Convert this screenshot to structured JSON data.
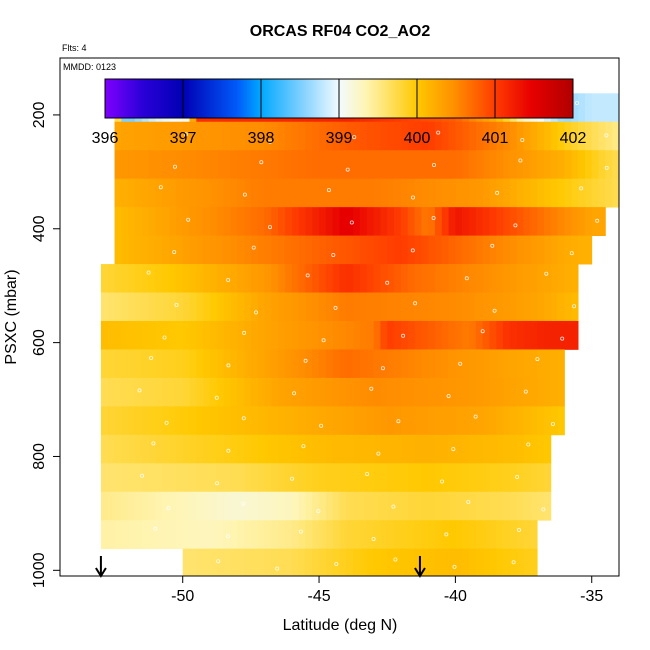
{
  "chart_data": {
    "type": "heatmap",
    "title": "ORCAS RF04 CO2_AO2",
    "flights_label": "Flts: 4",
    "date_label": "MMDD: 0123",
    "xlabel": "Latitude (deg N)",
    "ylabel": "PSXC (mbar)",
    "xlim": [
      -54.5,
      -34.0
    ],
    "ylim": [
      1010,
      100
    ],
    "x_ticks": [
      -50,
      -45,
      -40,
      -35
    ],
    "x_tick_labels": [
      "-50",
      "-45",
      "-40",
      "-35"
    ],
    "y_ticks": [
      200,
      400,
      600,
      800,
      1000
    ],
    "y_tick_labels": [
      "200",
      "400",
      "600",
      "800",
      "1000"
    ],
    "colorbar": {
      "min": 396,
      "max": 402,
      "ticks": [
        396,
        397,
        398,
        399,
        400,
        401,
        402
      ],
      "tick_labels": [
        "396",
        "397",
        "398",
        "399",
        "400",
        "401",
        "402"
      ]
    },
    "markers": [
      -53.0,
      -41.3
    ],
    "pressure_bands": [
      {
        "p": 187,
        "lat_min": -52.5,
        "lat_max": -34.0,
        "segments": [
          {
            "lat": -52.5,
            "v": 400.3
          },
          {
            "lat": -52.1,
            "v": 398.4
          },
          {
            "lat": -51.0,
            "v": 398.9
          },
          {
            "lat": -49.8,
            "v": 399.1
          },
          {
            "lat": -49.5,
            "v": 401.1
          },
          {
            "lat": -44.0,
            "v": 401.2
          },
          {
            "lat": -40.0,
            "v": 400.8
          },
          {
            "lat": -38.5,
            "v": 400.2
          },
          {
            "lat": -37.5,
            "v": 399.3
          },
          {
            "lat": -36.0,
            "v": 398.6
          },
          {
            "lat": -35.0,
            "v": 398.8
          },
          {
            "lat": -34.0,
            "v": 398.8
          }
        ]
      },
      {
        "p": 237,
        "lat_min": -52.5,
        "lat_max": -34.0,
        "segments": [
          {
            "lat": -52.5,
            "v": 400.3
          },
          {
            "lat": -47.0,
            "v": 400.5
          },
          {
            "lat": -44.0,
            "v": 400.8
          },
          {
            "lat": -41.0,
            "v": 401.0
          },
          {
            "lat": -38.0,
            "v": 400.5
          },
          {
            "lat": -35.5,
            "v": 399.8
          },
          {
            "lat": -34.0,
            "v": 399.5
          }
        ]
      },
      {
        "p": 287,
        "lat_min": -52.5,
        "lat_max": -33.5,
        "segments": [
          {
            "lat": -52.5,
            "v": 400.4
          },
          {
            "lat": -45.0,
            "v": 400.7
          },
          {
            "lat": -40.0,
            "v": 400.7
          },
          {
            "lat": -36.0,
            "v": 400.2
          },
          {
            "lat": -34.5,
            "v": 399.8
          },
          {
            "lat": -33.5,
            "v": 399.6
          }
        ]
      },
      {
        "p": 337,
        "lat_min": -52.5,
        "lat_max": -34.0,
        "segments": [
          {
            "lat": -52.5,
            "v": 400.2
          },
          {
            "lat": -47.0,
            "v": 400.6
          },
          {
            "lat": -43.0,
            "v": 400.6
          },
          {
            "lat": -39.0,
            "v": 400.4
          },
          {
            "lat": -35.5,
            "v": 399.9
          },
          {
            "lat": -34.0,
            "v": 399.7
          }
        ]
      },
      {
        "p": 387,
        "lat_min": -52.5,
        "lat_max": -34.5,
        "segments": [
          {
            "lat": -52.5,
            "v": 400.1
          },
          {
            "lat": -47.0,
            "v": 400.7
          },
          {
            "lat": -44.0,
            "v": 401.5
          },
          {
            "lat": -42.0,
            "v": 401.0
          },
          {
            "lat": -41.0,
            "v": 400.6
          },
          {
            "lat": -40.0,
            "v": 401.3
          },
          {
            "lat": -37.0,
            "v": 400.7
          },
          {
            "lat": -35.0,
            "v": 400.3
          },
          {
            "lat": -34.5,
            "v": 400.3
          }
        ]
      },
      {
        "p": 437,
        "lat_min": -52.5,
        "lat_max": -35.0,
        "segments": [
          {
            "lat": -52.5,
            "v": 400.1
          },
          {
            "lat": -48.0,
            "v": 400.5
          },
          {
            "lat": -44.5,
            "v": 400.8
          },
          {
            "lat": -42.0,
            "v": 401.0
          },
          {
            "lat": -39.0,
            "v": 400.6
          },
          {
            "lat": -35.5,
            "v": 400.2
          },
          {
            "lat": -35.0,
            "v": 400.2
          }
        ]
      },
      {
        "p": 487,
        "lat_min": -53.0,
        "lat_max": -35.5,
        "segments": [
          {
            "lat": -53.0,
            "v": 399.8
          },
          {
            "lat": -50.5,
            "v": 400.0
          },
          {
            "lat": -47.0,
            "v": 400.4
          },
          {
            "lat": -44.0,
            "v": 401.1
          },
          {
            "lat": -41.5,
            "v": 400.7
          },
          {
            "lat": -38.0,
            "v": 400.4
          },
          {
            "lat": -35.5,
            "v": 400.2
          }
        ]
      },
      {
        "p": 537,
        "lat_min": -53.0,
        "lat_max": -35.5,
        "segments": [
          {
            "lat": -53.0,
            "v": 399.6
          },
          {
            "lat": -50.0,
            "v": 399.8
          },
          {
            "lat": -47.0,
            "v": 400.3
          },
          {
            "lat": -44.0,
            "v": 400.6
          },
          {
            "lat": -40.0,
            "v": 400.5
          },
          {
            "lat": -37.0,
            "v": 400.3
          },
          {
            "lat": -35.5,
            "v": 400.1
          }
        ]
      },
      {
        "p": 587,
        "lat_min": -53.0,
        "lat_max": -35.5,
        "segments": [
          {
            "lat": -53.0,
            "v": 400.1
          },
          {
            "lat": -50.0,
            "v": 400.0
          },
          {
            "lat": -47.0,
            "v": 400.3
          },
          {
            "lat": -43.0,
            "v": 400.6
          },
          {
            "lat": -42.5,
            "v": 401.0
          },
          {
            "lat": -39.5,
            "v": 400.6
          },
          {
            "lat": -38.0,
            "v": 401.1
          },
          {
            "lat": -36.5,
            "v": 401.2
          },
          {
            "lat": -36.0,
            "v": 401.2
          }
        ]
      },
      {
        "p": 637,
        "lat_min": -53.0,
        "lat_max": -36.0,
        "segments": [
          {
            "lat": -53.0,
            "v": 399.8
          },
          {
            "lat": -50.0,
            "v": 399.9
          },
          {
            "lat": -47.0,
            "v": 400.3
          },
          {
            "lat": -44.0,
            "v": 400.7
          },
          {
            "lat": -41.0,
            "v": 400.5
          },
          {
            "lat": -38.0,
            "v": 400.3
          },
          {
            "lat": -36.0,
            "v": 400.2
          }
        ]
      },
      {
        "p": 687,
        "lat_min": -53.0,
        "lat_max": -36.0,
        "segments": [
          {
            "lat": -53.0,
            "v": 399.7
          },
          {
            "lat": -50.0,
            "v": 399.8
          },
          {
            "lat": -46.5,
            "v": 400.3
          },
          {
            "lat": -43.0,
            "v": 400.5
          },
          {
            "lat": -39.5,
            "v": 400.4
          },
          {
            "lat": -36.0,
            "v": 400.2
          }
        ]
      },
      {
        "p": 737,
        "lat_min": -53.0,
        "lat_max": -36.0,
        "segments": [
          {
            "lat": -53.0,
            "v": 399.8
          },
          {
            "lat": -49.5,
            "v": 400.0
          },
          {
            "lat": -46.0,
            "v": 400.2
          },
          {
            "lat": -42.5,
            "v": 400.4
          },
          {
            "lat": -39.0,
            "v": 400.3
          },
          {
            "lat": -36.0,
            "v": 400.0
          }
        ]
      },
      {
        "p": 787,
        "lat_min": -53.0,
        "lat_max": -36.5,
        "segments": [
          {
            "lat": -53.0,
            "v": 399.7
          },
          {
            "lat": -49.0,
            "v": 399.9
          },
          {
            "lat": -45.0,
            "v": 400.1
          },
          {
            "lat": -41.0,
            "v": 400.2
          },
          {
            "lat": -38.0,
            "v": 400.1
          },
          {
            "lat": -36.5,
            "v": 400.0
          }
        ]
      },
      {
        "p": 837,
        "lat_min": -53.0,
        "lat_max": -36.5,
        "segments": [
          {
            "lat": -53.0,
            "v": 399.6
          },
          {
            "lat": -48.0,
            "v": 399.7
          },
          {
            "lat": -45.0,
            "v": 399.9
          },
          {
            "lat": -41.0,
            "v": 400.0
          },
          {
            "lat": -38.0,
            "v": 399.9
          },
          {
            "lat": -36.5,
            "v": 399.8
          }
        ]
      },
      {
        "p": 887,
        "lat_min": -53.0,
        "lat_max": -36.5,
        "segments": [
          {
            "lat": -53.0,
            "v": 399.5
          },
          {
            "lat": -48.0,
            "v": 399.2
          },
          {
            "lat": -46.0,
            "v": 399.3
          },
          {
            "lat": -44.0,
            "v": 399.7
          },
          {
            "lat": -41.0,
            "v": 399.8
          },
          {
            "lat": -38.0,
            "v": 399.7
          },
          {
            "lat": -36.5,
            "v": 399.6
          }
        ]
      },
      {
        "p": 937,
        "lat_min": -53.0,
        "lat_max": -37.0,
        "segments": [
          {
            "lat": -53.0,
            "v": 399.4
          },
          {
            "lat": -49.0,
            "v": 399.3
          },
          {
            "lat": -46.0,
            "v": 399.5
          },
          {
            "lat": -44.0,
            "v": 399.8
          },
          {
            "lat": -40.0,
            "v": 400.0
          },
          {
            "lat": -37.0,
            "v": 399.8
          }
        ]
      },
      {
        "p": 987,
        "lat_min": -50.0,
        "lat_max": -37.0,
        "segments": [
          {
            "lat": -50.0,
            "v": 399.6
          },
          {
            "lat": -46.0,
            "v": 399.7
          },
          {
            "lat": -43.0,
            "v": 400.0
          },
          {
            "lat": -40.0,
            "v": 400.1
          },
          {
            "lat": -37.0,
            "v": 399.9
          }
        ]
      }
    ]
  }
}
